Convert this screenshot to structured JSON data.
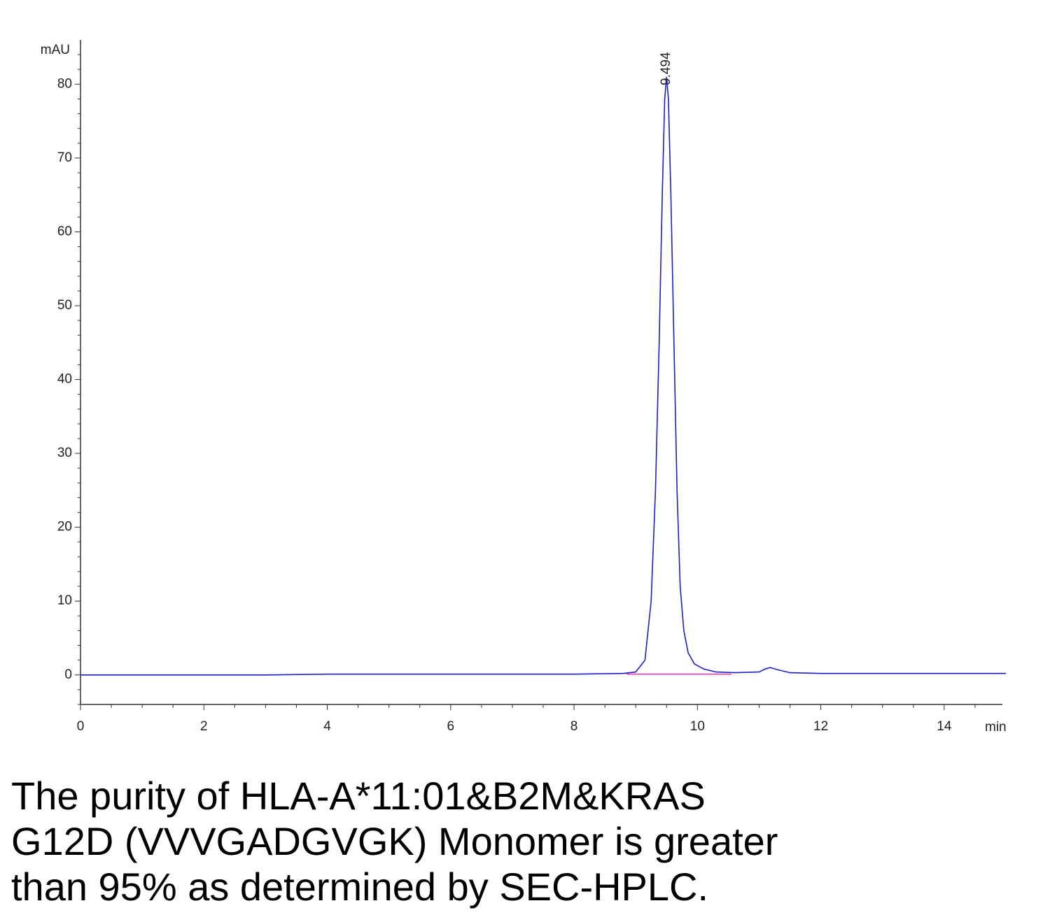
{
  "chart_data": {
    "type": "line",
    "x_label": "min",
    "y_label": "mAU",
    "xlim": [
      0,
      15
    ],
    "ylim": [
      -4,
      86
    ],
    "xticks": [
      0,
      2,
      4,
      6,
      8,
      10,
      12,
      14
    ],
    "yticks": [
      0,
      10,
      20,
      30,
      40,
      50,
      60,
      70,
      80
    ],
    "x_minor_ticks": [
      0.5,
      1,
      1.5,
      2.5,
      3,
      3.5,
      4.5,
      5,
      5.5,
      6.5,
      7,
      7.5,
      8.5,
      9,
      9.5,
      10.5,
      11,
      11.5,
      12.5,
      13,
      13.5,
      14.5
    ],
    "y_minor_ticks": [
      -4,
      -2,
      2,
      4,
      6,
      8,
      12,
      14,
      16,
      18,
      22,
      24,
      26,
      28,
      32,
      34,
      36,
      38,
      42,
      44,
      46,
      48,
      52,
      54,
      56,
      58,
      62,
      64,
      66,
      68,
      72,
      74,
      76,
      78,
      82,
      84
    ],
    "series": [
      {
        "color": "#1f1fc8",
        "x": [
          0,
          1,
          2,
          3,
          4,
          5,
          6,
          7,
          8,
          8.8,
          9.0,
          9.15,
          9.25,
          9.32,
          9.38,
          9.43,
          9.47,
          9.5,
          9.53,
          9.57,
          9.62,
          9.67,
          9.72,
          9.78,
          9.85,
          9.95,
          10.1,
          10.3,
          10.6,
          11.0,
          11.1,
          11.18,
          11.3,
          11.5,
          12,
          13,
          14,
          15
        ],
        "values": [
          0,
          0,
          0,
          0,
          0.1,
          0.1,
          0.1,
          0.1,
          0.1,
          0.2,
          0.4,
          2,
          10,
          25,
          45,
          65,
          78,
          81,
          78,
          65,
          45,
          25,
          12,
          6,
          3,
          1.5,
          0.8,
          0.4,
          0.3,
          0.4,
          0.8,
          1.0,
          0.7,
          0.3,
          0.2,
          0.2,
          0.2,
          0.2
        ]
      },
      {
        "color": "#e040c0",
        "x": [
          8.85,
          10.55
        ],
        "values": [
          0.1,
          0.1
        ]
      }
    ],
    "annotations": [
      {
        "text": "9.494",
        "x": 9.494
      }
    ]
  },
  "caption_lines": [
    "The purity of HLA-A*11:01&B2M&KRAS",
    "G12D (VVVGADGVGK) Monomer is greater",
    "than 95% as determined by SEC-HPLC."
  ]
}
